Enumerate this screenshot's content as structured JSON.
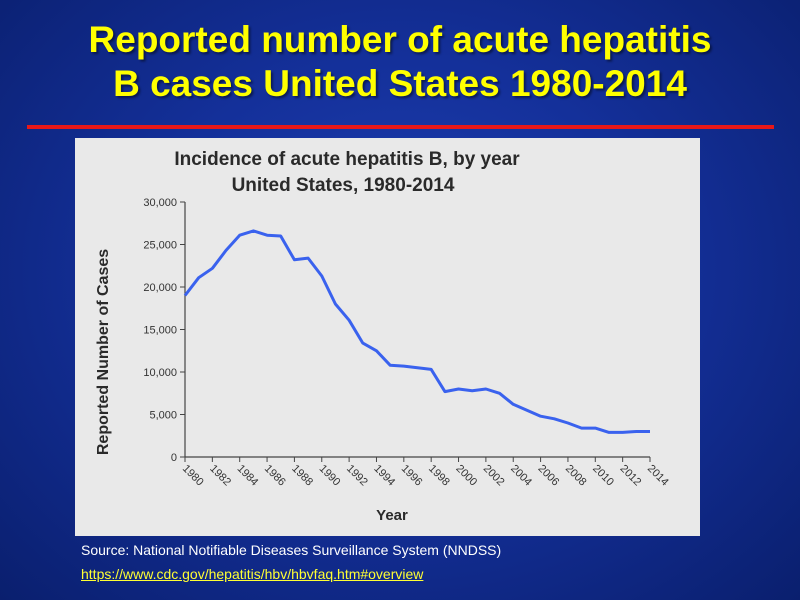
{
  "slide": {
    "title_line1": "Reported number of acute hepatitis",
    "title_line2": "B cases United States 1980-2014",
    "source_text": "Source: National Notifiable Diseases Surveillance System (NNDSS)",
    "source_link": "https://www.cdc.gov/hepatitis/hbv/hbvfaq.htm#overview",
    "colors": {
      "title": "#ffff00",
      "rule": "#e81818",
      "background": "#14309a",
      "line": "#3a62ee",
      "link": "#ffff33"
    }
  },
  "chart_data": {
    "type": "line",
    "title": "Incidence of acute hepatitis B, by year",
    "subtitle": "United States, 1980-2014",
    "xlabel": "Year",
    "ylabel": "Reported Number of Cases",
    "ylim": [
      0,
      30000
    ],
    "xlim": [
      1980,
      2014
    ],
    "y_ticks": [
      "0",
      "5,000",
      "10,000",
      "15,000",
      "20,000",
      "25,000",
      "30,000"
    ],
    "x_ticks": [
      "1980",
      "1982",
      "1984",
      "1986",
      "1988",
      "1990",
      "1992",
      "1994",
      "1996",
      "1998",
      "2000",
      "2002",
      "2004",
      "2006",
      "2008",
      "2010",
      "2012",
      "2014"
    ],
    "grid": false,
    "legend": "none",
    "series": [
      {
        "x": [
          1980,
          1981,
          1982,
          1983,
          1984,
          1985,
          1986,
          1987,
          1988,
          1989,
          1990,
          1991,
          1992,
          1993,
          1994,
          1995,
          1996,
          1997,
          1998,
          1999,
          2000,
          2001,
          2002,
          2003,
          2004,
          2005,
          2006,
          2007,
          2008,
          2009,
          2010,
          2011,
          2012,
          2013,
          2014
        ],
        "y": [
          19000,
          21100,
          22200,
          24300,
          26100,
          26600,
          26100,
          26000,
          23200,
          23400,
          21300,
          18000,
          16100,
          13400,
          12500,
          10800,
          10700,
          10500,
          10300,
          7700,
          8000,
          7800,
          8000,
          7500,
          6200,
          5500,
          4800,
          4500,
          4000,
          3400,
          3400,
          2900,
          2900,
          3000,
          3000
        ]
      }
    ]
  }
}
